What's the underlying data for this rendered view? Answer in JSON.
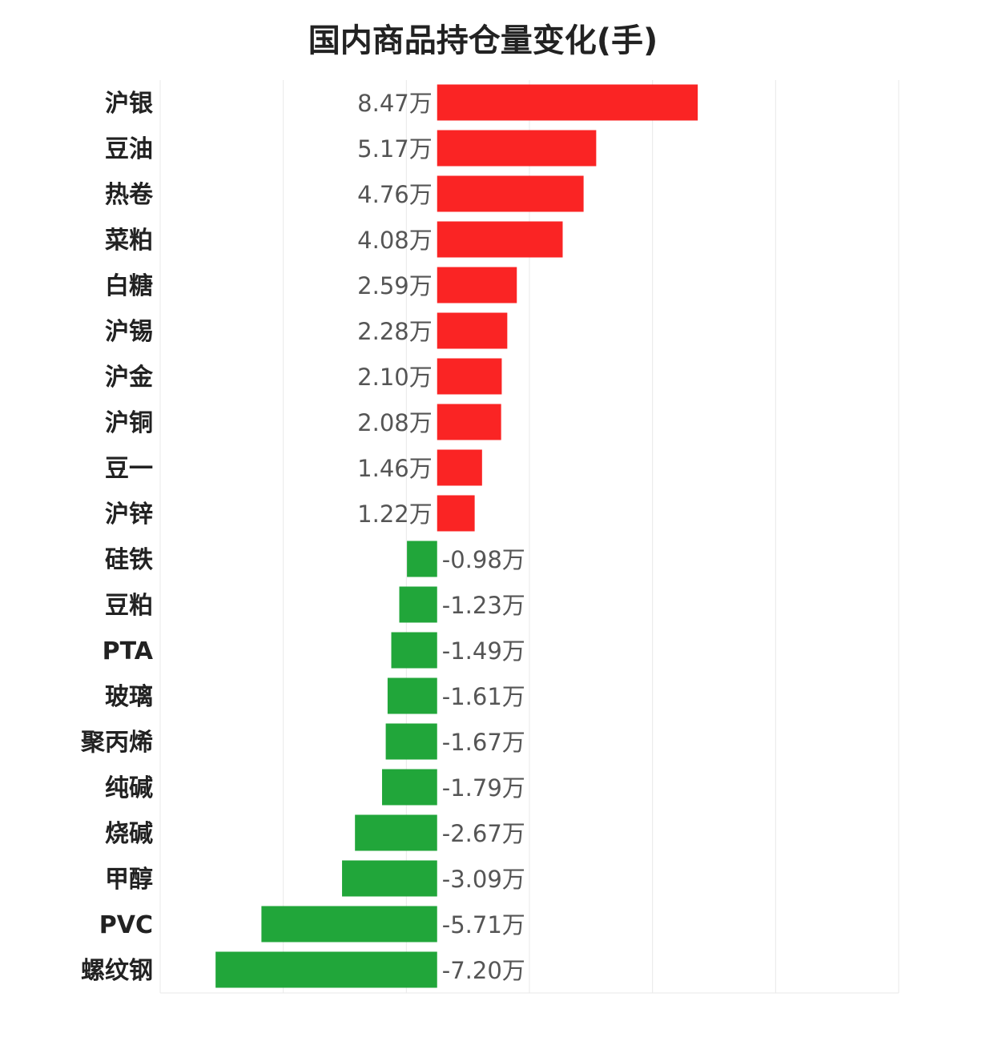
{
  "colors": {
    "positive": "#fa2424",
    "negative": "#21a63a",
    "grid": "#e8e8e8"
  },
  "chart_data": {
    "type": "bar",
    "orientation": "horizontal",
    "title": "国内商品持仓量变化(手)",
    "unit": "万",
    "xlim": [
      -9,
      15
    ],
    "grid": true,
    "categories": [
      "沪银",
      "豆油",
      "热卷",
      "菜粕",
      "白糖",
      "沪锡",
      "沪金",
      "沪铜",
      "豆一",
      "沪锌",
      "硅铁",
      "豆粕",
      "PTA",
      "玻璃",
      "聚丙烯",
      "纯碱",
      "烧碱",
      "甲醇",
      "PVC",
      "螺纹钢"
    ],
    "values": [
      8.47,
      5.17,
      4.76,
      4.08,
      2.59,
      2.28,
      2.1,
      2.08,
      1.46,
      1.22,
      -0.98,
      -1.23,
      -1.49,
      -1.61,
      -1.67,
      -1.79,
      -2.67,
      -3.09,
      -5.71,
      -7.2
    ],
    "labels": [
      "8.47万",
      "5.17万",
      "4.76万",
      "4.08万",
      "2.59万",
      "2.28万",
      "2.10万",
      "2.08万",
      "1.46万",
      "1.22万",
      "-0.98万",
      "-1.23万",
      "-1.49万",
      "-1.61万",
      "-1.67万",
      "-1.79万",
      "-2.67万",
      "-3.09万",
      "-5.71万",
      "-7.20万"
    ]
  }
}
